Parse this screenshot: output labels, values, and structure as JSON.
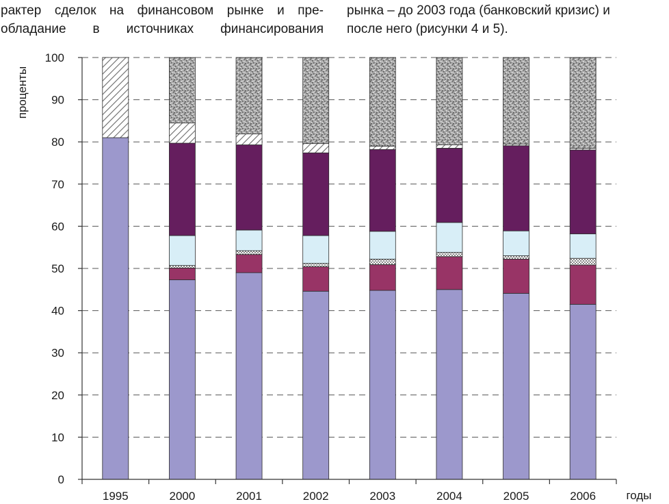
{
  "text": {
    "left_lines": [
      "рактер сделок на финансовом рынке и пре-",
      "обладание в источниках финансирования"
    ],
    "right_lines": [
      "рынка – до 2003 года (банковский кризис) и",
      "после него (рисунки 4 и 5)."
    ]
  },
  "chart_data": {
    "type": "bar",
    "stacked": true,
    "categories": [
      "1995",
      "2000",
      "2001",
      "2002",
      "2003",
      "2004",
      "2005",
      "2006"
    ],
    "xlabel": "годы",
    "ylabel": "проценты",
    "ylim": [
      0,
      100
    ],
    "yticks": [
      0,
      10,
      20,
      30,
      40,
      50,
      60,
      70,
      80,
      90,
      100
    ],
    "grid": "horizontal dashed",
    "series": [
      {
        "color": "#9c98cc",
        "pattern": "solid",
        "values": [
          81.0,
          47.3,
          49.0,
          44.6,
          44.8,
          45.0,
          44.1,
          41.5
        ]
      },
      {
        "color": "#983466",
        "pattern": "solid",
        "values": [
          0,
          2.8,
          4.3,
          5.8,
          6.1,
          7.8,
          8.1,
          9.3
        ]
      },
      {
        "color": "#ffffff",
        "pattern": "dots",
        "values": [
          0,
          0.6,
          0.9,
          0.8,
          1.3,
          1.0,
          0.8,
          1.6
        ]
      },
      {
        "color": "#d8eef7",
        "pattern": "solid",
        "values": [
          0,
          7.1,
          4.9,
          6.6,
          6.6,
          7.1,
          5.9,
          5.8
        ]
      },
      {
        "color": "#651e5e",
        "pattern": "solid",
        "values": [
          0,
          21.9,
          20.2,
          19.6,
          19.4,
          17.6,
          20.2,
          19.9
        ]
      },
      {
        "color": "#ffffff",
        "pattern": "hatch",
        "values": [
          19.0,
          4.8,
          2.6,
          2.2,
          0.8,
          0.8,
          0.4,
          0.4
        ]
      },
      {
        "color": "#a0a0a0",
        "pattern": "speckle",
        "values": [
          0,
          15.5,
          18.1,
          20.4,
          21.0,
          20.7,
          20.5,
          21.5
        ]
      }
    ]
  }
}
